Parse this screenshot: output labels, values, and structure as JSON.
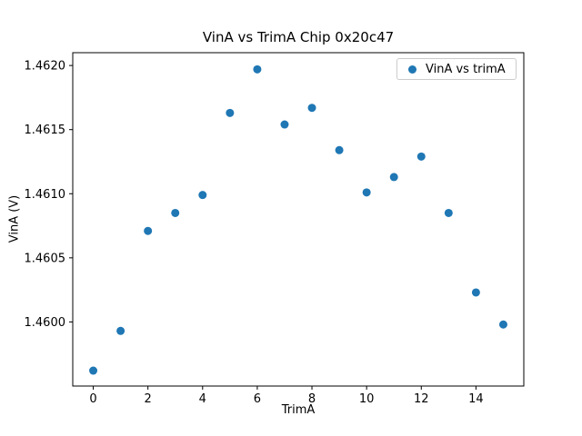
{
  "figure": {
    "background": "#ffffff"
  },
  "chart_data": {
    "type": "scatter",
    "title": "VinA vs TrimA Chip 0x20c47",
    "xlabel": "TrimA",
    "ylabel": "VinA (V)",
    "legend": {
      "label": "VinA vs trimA",
      "position": "upper right",
      "edge_color": "#cccccc"
    },
    "marker_color": "#1f77b4",
    "grid": false,
    "x": [
      0,
      1,
      2,
      3,
      4,
      5,
      6,
      7,
      8,
      9,
      10,
      11,
      12,
      13,
      14,
      15
    ],
    "y": [
      1.45962,
      1.45993,
      1.46071,
      1.46085,
      1.46099,
      1.46163,
      1.46197,
      1.46154,
      1.46167,
      1.46134,
      1.46101,
      1.46113,
      1.46129,
      1.46085,
      1.46023,
      1.45998
    ],
    "xlim": [
      -0.75,
      15.75
    ],
    "ylim": [
      1.4595,
      1.4621
    ],
    "xticks": [
      0,
      2,
      4,
      6,
      8,
      10,
      12,
      14
    ],
    "yticks": [
      1.46,
      1.4605,
      1.461,
      1.4615,
      1.462
    ],
    "ytick_labels": [
      "1.4600",
      "1.4605",
      "1.4610",
      "1.4615",
      "1.4620"
    ]
  }
}
